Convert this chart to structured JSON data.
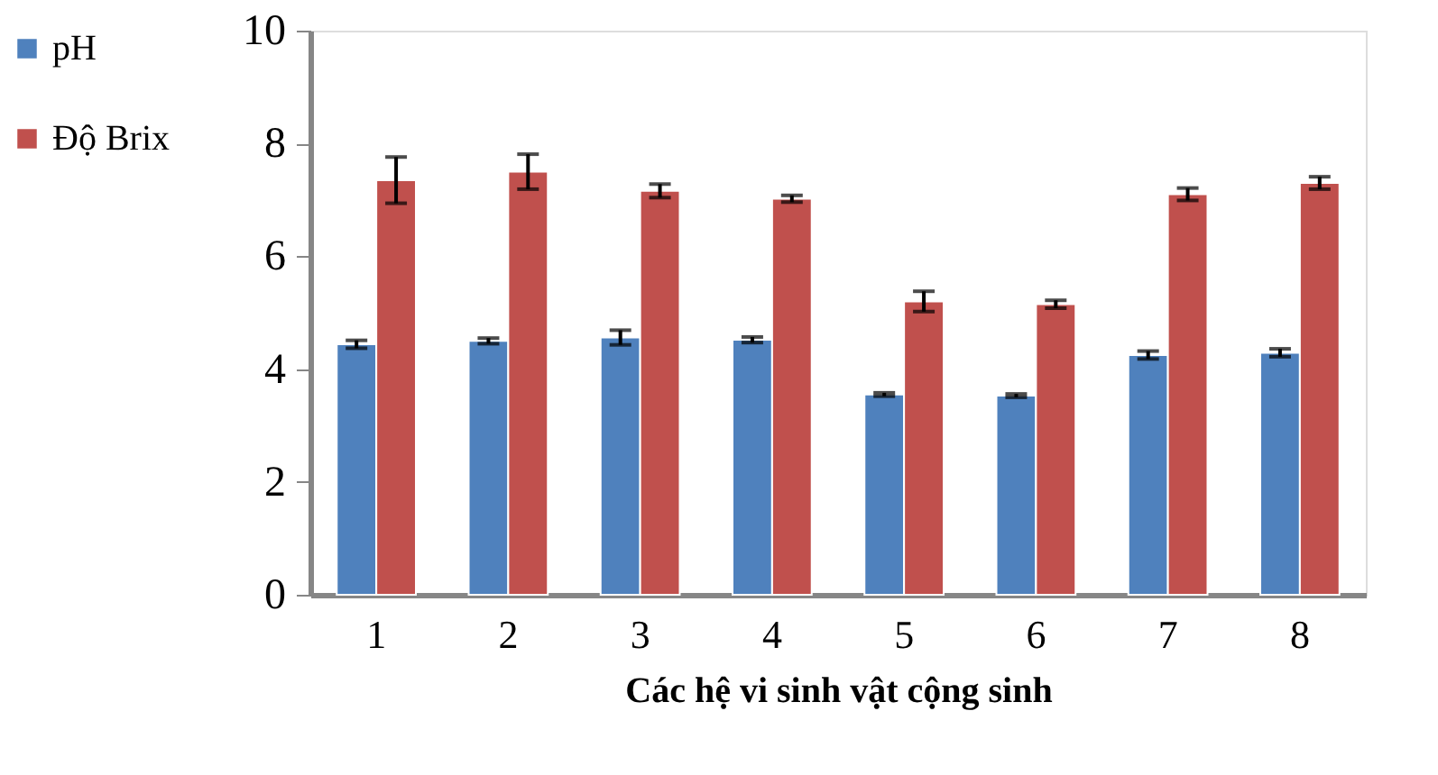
{
  "chart_data": {
    "type": "bar",
    "xlabel": "Các hệ vi sinh vật cộng sinh",
    "categories": [
      "1",
      "2",
      "3",
      "4",
      "5",
      "6",
      "7",
      "8"
    ],
    "series": [
      {
        "name": "pH",
        "color": "#4f81bd",
        "values": [
          4.44,
          4.5,
          4.56,
          4.52,
          3.55,
          3.53,
          4.25,
          4.29
        ],
        "errors": [
          0.07,
          0.05,
          0.13,
          0.05,
          0.03,
          0.03,
          0.07,
          0.07
        ]
      },
      {
        "name": "Độ Brix",
        "color": "#c0504d",
        "values": [
          7.35,
          7.5,
          7.16,
          7.02,
          5.2,
          5.15,
          7.1,
          7.3
        ],
        "errors": [
          0.41,
          0.31,
          0.12,
          0.06,
          0.18,
          0.07,
          0.11,
          0.11
        ]
      }
    ],
    "ylim": [
      0,
      10
    ],
    "yticks": [
      0,
      2,
      4,
      6,
      8,
      10
    ],
    "grid": false,
    "legend": "left"
  }
}
